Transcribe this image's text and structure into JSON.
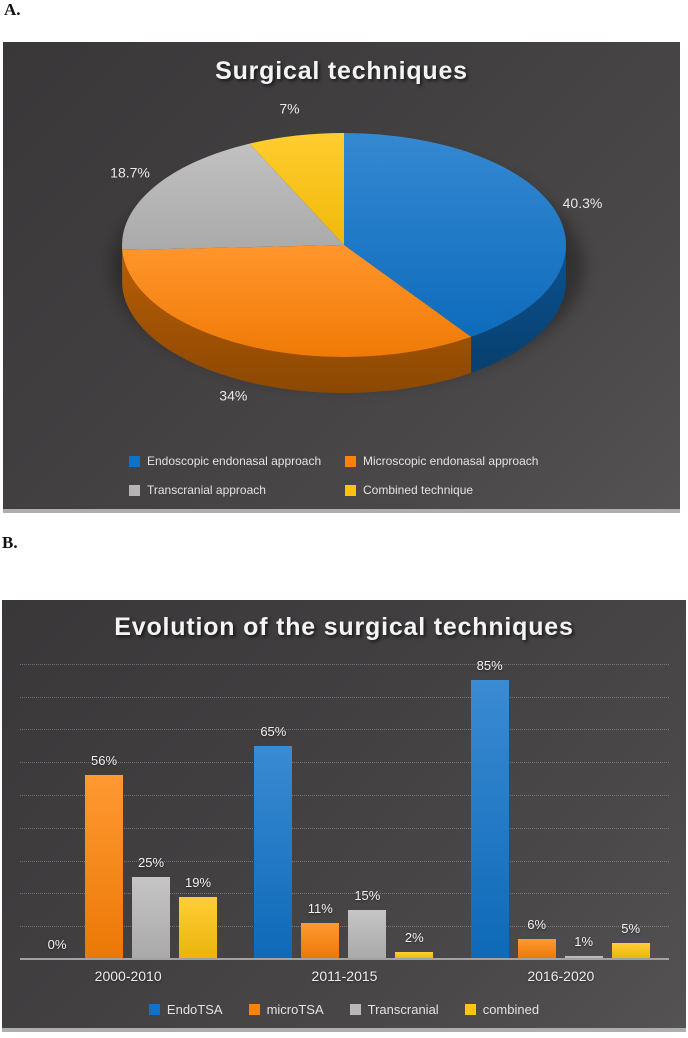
{
  "figure_labels": {
    "a": "A.",
    "b": "B."
  },
  "chart_data": [
    {
      "type": "pie",
      "title": "Surgical techniques",
      "effect": "3d",
      "legend_position": "bottom",
      "slices": [
        {
          "label": "Endoscopic endonasal approach",
          "value": 40.3,
          "value_label": "40.3%",
          "color": "#0f72c8"
        },
        {
          "label": "Microscopic endonasal approach",
          "value": 34,
          "value_label": "34%",
          "color": "#ff8205"
        },
        {
          "label": "Transcranial approach",
          "value": 18.7,
          "value_label": "18.7%",
          "color": "#b5b5b5"
        },
        {
          "label": "Combined technique",
          "value": 7,
          "value_label": "7%",
          "color": "#ffc408"
        }
      ]
    },
    {
      "type": "bar",
      "title": "Evolution of the surgical techniques",
      "categories": [
        "2000-2010",
        "2011-2015",
        "2016-2020"
      ],
      "series": [
        {
          "name": "EndoTSA",
          "color": "#0f72c8",
          "values": [
            0,
            65,
            85
          ],
          "value_labels": [
            "0%",
            "65%",
            "85%"
          ]
        },
        {
          "name": "microTSA",
          "color": "#ff8205",
          "values": [
            56,
            11,
            6
          ],
          "value_labels": [
            "56%",
            "11%",
            "6%"
          ]
        },
        {
          "name": "Transcranial",
          "color": "#b8b8b8",
          "values": [
            25,
            15,
            1
          ],
          "value_labels": [
            "25%",
            "15%",
            "1%"
          ]
        },
        {
          "name": "combined",
          "color": "#ffc40c",
          "values": [
            19,
            2,
            5
          ],
          "value_labels": [
            "19%",
            "2%",
            "5%"
          ]
        }
      ],
      "ylim": [
        0,
        100
      ],
      "gridline_interval": 10,
      "grid": "horizontal-dotted",
      "y_axis_tick_labels": "none",
      "legend_position": "bottom"
    }
  ]
}
